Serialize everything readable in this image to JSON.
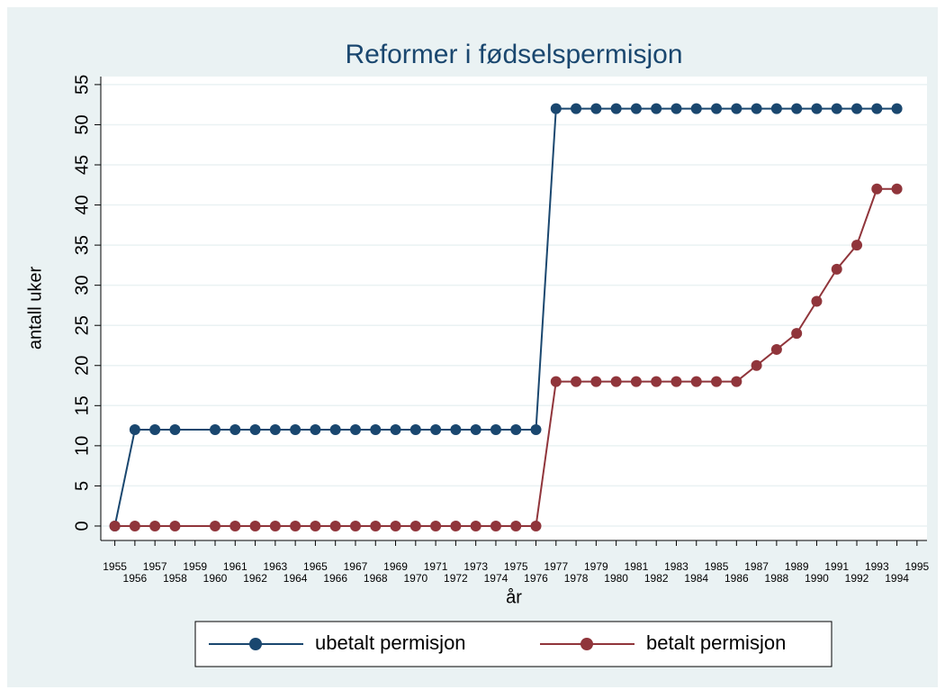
{
  "chart_data": {
    "type": "line",
    "title": "Reformer i fødselspermisjon",
    "x_label": "år",
    "y_label": "antall uker",
    "x": [
      1955,
      1956,
      1957,
      1958,
      1960,
      1961,
      1962,
      1963,
      1964,
      1965,
      1966,
      1967,
      1968,
      1969,
      1970,
      1971,
      1972,
      1973,
      1974,
      1975,
      1976,
      1977,
      1978,
      1979,
      1980,
      1981,
      1982,
      1983,
      1984,
      1985,
      1986,
      1987,
      1988,
      1989,
      1990,
      1991,
      1992,
      1993,
      1994
    ],
    "series": [
      {
        "name": "ubetalt permisjon",
        "color": "#1a476f",
        "values": [
          0,
          12,
          12,
          12,
          12,
          12,
          12,
          12,
          12,
          12,
          12,
          12,
          12,
          12,
          12,
          12,
          12,
          12,
          12,
          12,
          12,
          52,
          52,
          52,
          52,
          52,
          52,
          52,
          52,
          52,
          52,
          52,
          52,
          52,
          52,
          52,
          52,
          52,
          52
        ]
      },
      {
        "name": "betalt permisjon",
        "color": "#90353b",
        "values": [
          0,
          0,
          0,
          0,
          0,
          0,
          0,
          0,
          0,
          0,
          0,
          0,
          0,
          0,
          0,
          0,
          0,
          0,
          0,
          0,
          0,
          18,
          18,
          18,
          18,
          18,
          18,
          18,
          18,
          18,
          18,
          20,
          22,
          24,
          28,
          32,
          35,
          42,
          42
        ]
      }
    ],
    "xlim": [
      1954.3,
      1995.5
    ],
    "ylim": [
      -1.8,
      56
    ],
    "xticks": [
      1955,
      1956,
      1957,
      1958,
      1959,
      1960,
      1961,
      1962,
      1963,
      1964,
      1965,
      1966,
      1967,
      1968,
      1969,
      1970,
      1971,
      1972,
      1973,
      1974,
      1975,
      1976,
      1977,
      1978,
      1979,
      1980,
      1981,
      1982,
      1983,
      1984,
      1985,
      1986,
      1987,
      1988,
      1989,
      1990,
      1991,
      1992,
      1993,
      1994,
      1995
    ],
    "yticks": [
      0,
      5,
      10,
      15,
      20,
      25,
      30,
      35,
      40,
      45,
      50,
      55
    ],
    "grid": true,
    "legend": "bottom"
  }
}
